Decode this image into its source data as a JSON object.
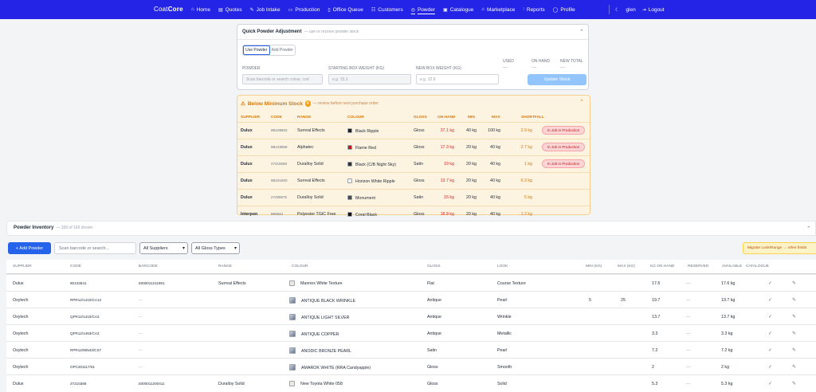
{
  "nav": {
    "brand_light": "Coat",
    "brand_bold": "Core",
    "items": [
      {
        "label": "Home",
        "icon": "⌂"
      },
      {
        "label": "Quotes",
        "icon": "▤"
      },
      {
        "label": "Job Intake",
        "icon": "✎"
      },
      {
        "label": "Production",
        "icon": "▭"
      },
      {
        "label": "Office Queue",
        "icon": "▯"
      },
      {
        "label": "Customers",
        "icon": "☷"
      },
      {
        "label": "Powder",
        "icon": "◎"
      },
      {
        "label": "Catalogue",
        "icon": "▣"
      },
      {
        "label": "Marketplace",
        "icon": "⌂"
      },
      {
        "label": "Reports",
        "icon": "⫶"
      },
      {
        "label": "Profile",
        "icon": "◯"
      }
    ],
    "active": "Powder",
    "user": "glen",
    "logout": "Logout"
  },
  "quick": {
    "title": "Quick Powder Adjustment",
    "subtitle": "— use or receive powder stock",
    "tab_use": "Use Powder",
    "tab_add": "Add Powder",
    "powder_label": "POWDER",
    "powder_placeholder": "Scan barcode or search colour, cod",
    "start_label": "STARTING BOX WEIGHT (KG)",
    "start_placeholder": "e.g. 15.3",
    "new_label": "NEW BOX WEIGHT (KG)",
    "new_placeholder": "e.g. 12.8",
    "used_label": "USED",
    "onhand_label": "ON HAND",
    "newtotal_label": "NEW TOTAL",
    "dash": "—",
    "update_button": "Update Stock"
  },
  "below_min": {
    "title": "Below Minimum Stock",
    "count": "6",
    "note": "— review before next purchase order",
    "headers": [
      "SUPPLIER",
      "CODE",
      "RANGE",
      "COLOUR",
      "GLOSS",
      "ON HAND",
      "MIN",
      "MAX",
      "SHORTFALL"
    ],
    "rows": [
      {
        "supplier": "Dulux",
        "code": "9B109803",
        "range": "Surreal Effects",
        "colour": "Black Ripple",
        "swatch": "#1f1f1f",
        "gloss": "Gloss",
        "onhand": "37.1 kg",
        "min": "40 kg",
        "max": "100 kg",
        "shortfall": "2.9 kg",
        "pill": "In Job in Production"
      },
      {
        "supplier": "Dulux",
        "code": "9B419959",
        "range": "Alphatec",
        "colour": "Flame Red",
        "swatch": "#b91c1c",
        "gloss": "Gloss",
        "onhand": "17.3 kg",
        "min": "20 kg",
        "max": "40 kg",
        "shortfall": "2.7 kg",
        "pill": "In Job in Production"
      },
      {
        "supplier": "Dulux",
        "code": "27215068",
        "range": "Duralloy Solid",
        "colour": "Black (C/B Night Sky)",
        "swatch": "#333333",
        "gloss": "Satin",
        "onhand": "19 kg",
        "min": "20 kg",
        "max": "40 kg",
        "shortfall": "1 kg",
        "pill": "In Job in Production"
      },
      {
        "supplier": "Dulux",
        "code": "9B151600",
        "range": "Surreal Effects",
        "colour": "Horizon White Ripple",
        "swatch": "#f5f5f0",
        "gloss": "Gloss",
        "onhand": "13.7 kg",
        "min": "20 kg",
        "max": "40 kg",
        "shortfall": "6.3 kg",
        "pill": ""
      },
      {
        "supplier": "Dulux",
        "code": "27299675",
        "range": "Duralloy Solid",
        "colour": "Monument",
        "swatch": "#4b4a47",
        "gloss": "Satin",
        "onhand": "15 kg",
        "min": "20 kg",
        "max": "40 kg",
        "shortfall": "5 kg",
        "pill": ""
      },
      {
        "supplier": "Interpon",
        "code": "890934",
        "range": "Polyester TGIC Free",
        "colour": "Coral Black",
        "swatch": "#141414",
        "gloss": "Gloss",
        "onhand": "18.8 kg",
        "min": "20 kg",
        "max": "40 kg",
        "shortfall": "1.2 kg",
        "pill": ""
      }
    ]
  },
  "inventory": {
    "title": "Powder Inventory",
    "count_text": "— 169 of 169 shown",
    "add_button": "+ Add Powder",
    "search_placeholder": "Scan barcode or search...",
    "supplier_select": "All Suppliers",
    "gloss_select": "All Gloss Types",
    "migrate_button": "Migrate Look/Range → other fields",
    "headers": [
      "SUPPLIER",
      "CODE",
      "BARCODE",
      "RANGE",
      "COLOUR",
      "GLOSS",
      "LOOK",
      "MIN (KG)",
      "MAX (KG)",
      "KG ON HAND",
      "RESERVED",
      "AVAILABLE",
      "CATALOGUE"
    ],
    "rows": [
      {
        "supplier": "Dulux",
        "code": "90133641",
        "barcode": "9300011211891",
        "range": "Surreal Effects",
        "colour": "Mannex White Texture",
        "thumb": "box",
        "gloss": "Flat",
        "look": "Course Texture",
        "min": "",
        "max": "",
        "onhand": "17.6",
        "reserved": "—",
        "available": "17.6 kg"
      },
      {
        "supplier": "Oxytech",
        "code": "RPR12/1410/CA12",
        "barcode": "—",
        "range": "",
        "colour": "ANTIQUE BLACK WRINKLE",
        "thumb": "img",
        "gloss": "Antique",
        "look": "Pearl",
        "min": "5",
        "max": "25",
        "onhand": "19.7",
        "reserved": "—",
        "available": "19.7 kg"
      },
      {
        "supplier": "Oxytech",
        "code": "QFR12/1410/CA2",
        "barcode": "—",
        "range": "",
        "colour": "ANTIQUE LIGHT SILVER",
        "thumb": "img",
        "gloss": "Antique",
        "look": "Wrinkle",
        "min": "",
        "max": "",
        "onhand": "13.7",
        "reserved": "—",
        "available": "13.7 kg"
      },
      {
        "supplier": "Oxytech",
        "code": "QFR12/1463/CA2",
        "barcode": "—",
        "range": "",
        "colour": "ANTIQUE COPPER",
        "thumb": "img",
        "gloss": "Antique",
        "look": "Metallic",
        "min": "",
        "max": "",
        "onhand": "3.3",
        "reserved": "—",
        "available": "3.3 kg"
      },
      {
        "supplier": "Oxytech",
        "code": "RPR12/90543/CS7",
        "barcode": "—",
        "range": "",
        "colour": "ANODIC BRONZE PEARL",
        "thumb": "img",
        "gloss": "Satin",
        "look": "Pearl",
        "min": "",
        "max": "",
        "onhand": "7.2",
        "reserved": "—",
        "available": "7.2 kg"
      },
      {
        "supplier": "Oxytech",
        "code": "OPC201117/01",
        "barcode": "—",
        "range": "",
        "colour": "AMAROK WHITE (RRA Candyapple)",
        "thumb": "img",
        "gloss": "Gloss",
        "look": "Smooth",
        "min": "",
        "max": "",
        "onhand": "2",
        "reserved": "—",
        "available": "2 kg"
      },
      {
        "supplier": "Dulux",
        "code": "27210366",
        "barcode": "9300011200411",
        "range": "Duralloy Solid",
        "colour": "New Toyota White 058",
        "thumb": "box",
        "gloss": "Gloss",
        "look": "Solid",
        "min": "",
        "max": "",
        "onhand": "5.3",
        "reserved": "—",
        "available": "5.3 kg"
      }
    ]
  }
}
